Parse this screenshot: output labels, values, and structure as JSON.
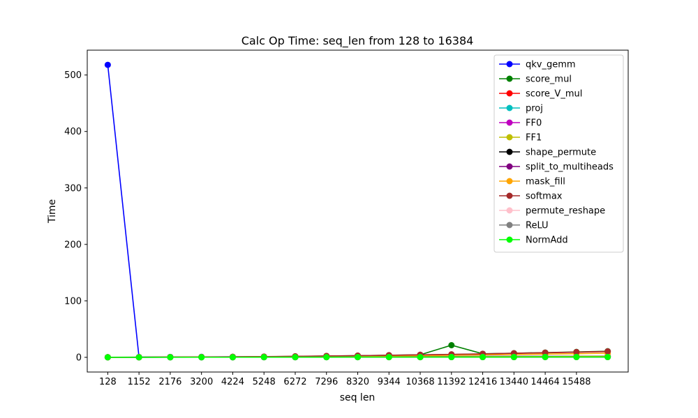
{
  "chart_data": {
    "type": "line",
    "title": "Calc Op Time: seq_len from 128 to 16384",
    "xlabel": "seq len",
    "ylabel": "Time",
    "x": [
      128,
      1152,
      2176,
      3200,
      4224,
      5248,
      6272,
      7296,
      8320,
      9344,
      10368,
      11392,
      12416,
      13440,
      14464,
      15488,
      16512
    ],
    "x_tick_labels": [
      "128",
      "1152",
      "2176",
      "3200",
      "4224",
      "5248",
      "6272",
      "7296",
      "8320",
      "9344",
      "10368",
      "11392",
      "12416",
      "13440",
      "14464",
      "15488"
    ],
    "y_ticks": [
      0,
      100,
      200,
      300,
      400,
      500
    ],
    "xlim": [
      -544,
      17184
    ],
    "ylim": [
      -26,
      544
    ],
    "grid": false,
    "legend_position": "top-right",
    "series": [
      {
        "name": "qkv_gemm",
        "color": "#0000ff",
        "values": [
          518,
          0.5,
          0.7,
          0.8,
          0.9,
          1.0,
          1.1,
          1.2,
          1.3,
          1.4,
          1.5,
          1.6,
          1.7,
          1.8,
          1.9,
          2.0,
          2.1
        ]
      },
      {
        "name": "score_mul",
        "color": "#008000",
        "values": [
          0.1,
          0.2,
          0.3,
          0.5,
          0.8,
          1.2,
          1.7,
          2.3,
          3.0,
          3.7,
          4.5,
          21.5,
          6.3,
          7.3,
          8.4,
          9.6,
          10.8
        ]
      },
      {
        "name": "score_V_mul",
        "color": "#ff0000",
        "values": [
          0.1,
          0.2,
          0.3,
          0.5,
          0.8,
          1.2,
          1.6,
          2.2,
          2.8,
          3.5,
          4.3,
          5.1,
          6.0,
          7.0,
          8.0,
          9.1,
          10.2
        ]
      },
      {
        "name": "proj",
        "color": "#00bfbf",
        "values": [
          0.1,
          0.1,
          0.2,
          0.2,
          0.3,
          0.3,
          0.4,
          0.4,
          0.5,
          0.5,
          0.6,
          0.6,
          0.7,
          0.7,
          0.8,
          0.8,
          0.9
        ]
      },
      {
        "name": "FF0",
        "color": "#bf00bf",
        "values": [
          0.2,
          0.3,
          0.4,
          0.5,
          0.6,
          0.7,
          0.8,
          0.9,
          1.0,
          1.1,
          1.2,
          1.3,
          1.4,
          1.5,
          1.6,
          1.7,
          1.8
        ]
      },
      {
        "name": "FF1",
        "color": "#bfbf00",
        "values": [
          0.2,
          0.3,
          0.4,
          0.5,
          0.6,
          0.7,
          0.8,
          0.9,
          1.0,
          1.1,
          1.2,
          1.3,
          1.4,
          1.5,
          1.6,
          1.7,
          1.8
        ]
      },
      {
        "name": "shape_permute",
        "color": "#000000",
        "values": [
          0.1,
          0.1,
          0.2,
          0.2,
          0.2,
          0.3,
          0.3,
          0.3,
          0.4,
          0.4,
          0.4,
          0.5,
          0.5,
          0.5,
          0.6,
          0.6,
          0.6
        ]
      },
      {
        "name": "split_to_multiheads",
        "color": "#800080",
        "values": [
          0.1,
          0.1,
          0.2,
          0.2,
          0.2,
          0.3,
          0.3,
          0.3,
          0.4,
          0.4,
          0.4,
          0.5,
          0.5,
          0.5,
          0.6,
          0.6,
          0.6
        ]
      },
      {
        "name": "mask_fill",
        "color": "#ffa500",
        "values": [
          0.1,
          0.2,
          0.3,
          0.5,
          0.7,
          1.0,
          1.3,
          1.7,
          2.1,
          2.6,
          3.1,
          3.7,
          4.3,
          5.0,
          5.7,
          6.5,
          7.3
        ]
      },
      {
        "name": "softmax",
        "color": "#a52a2a",
        "values": [
          0.1,
          0.2,
          0.4,
          0.6,
          0.9,
          1.3,
          1.8,
          2.4,
          3.0,
          3.7,
          4.5,
          5.3,
          6.2,
          7.2,
          8.2,
          9.3,
          10.5
        ]
      },
      {
        "name": "permute_reshape",
        "color": "#ffc0cb",
        "values": [
          0.1,
          0.1,
          0.2,
          0.2,
          0.2,
          0.3,
          0.3,
          0.3,
          0.4,
          0.4,
          0.4,
          0.5,
          0.5,
          0.5,
          0.6,
          0.6,
          0.6
        ]
      },
      {
        "name": "ReLU",
        "color": "#808080",
        "values": [
          0.1,
          0.1,
          0.1,
          0.2,
          0.2,
          0.2,
          0.2,
          0.3,
          0.3,
          0.3,
          0.3,
          0.4,
          0.4,
          0.4,
          0.4,
          0.5,
          0.5
        ]
      },
      {
        "name": "NormAdd",
        "color": "#00ff00",
        "values": [
          0.1,
          0.1,
          0.2,
          0.2,
          0.2,
          0.3,
          0.3,
          0.3,
          0.4,
          0.4,
          0.4,
          0.5,
          0.5,
          0.5,
          0.6,
          0.6,
          0.6
        ]
      }
    ]
  }
}
